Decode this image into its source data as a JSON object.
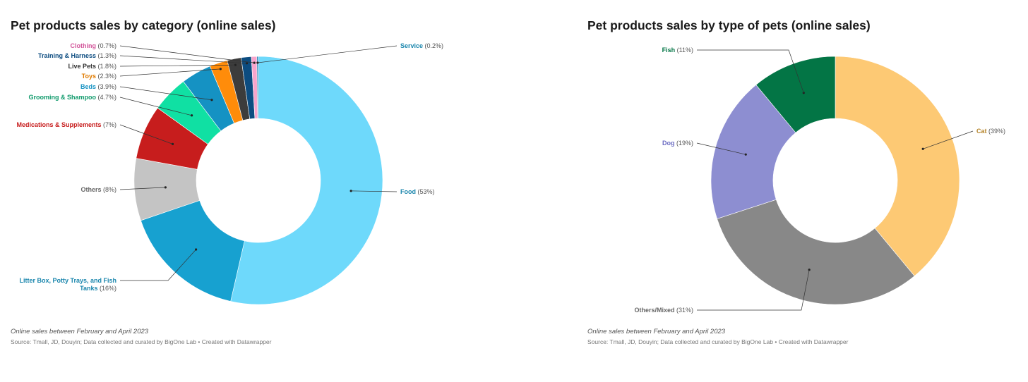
{
  "chart_data": [
    {
      "type": "pie",
      "title": "Pet products sales by category (online sales)",
      "caption": "Online sales between February and April 2023",
      "source": "Source: Tmall, JD, Douyin; Data collected and curated by BigOne Lab • Created with Datawrapper",
      "slices": [
        {
          "label": "Food",
          "pct": "(53%)",
          "value": 53,
          "color": "#6ed9fb",
          "text_color": "#1a86ad"
        },
        {
          "label": "Litter Box, Potty Trays, and Fish Tanks",
          "label_lines": [
            "Litter Box, Potty Trays, and Fish",
            "Tanks"
          ],
          "pct": "(16%)",
          "value": 16,
          "color": "#17a1d0",
          "text_color": "#1a86ad"
        },
        {
          "label": "Others",
          "pct": "(8%)",
          "value": 8,
          "color": "#c4c4c4",
          "text_color": "#666666"
        },
        {
          "label": "Medications & Supplements",
          "pct": "(7%)",
          "value": 7,
          "color": "#c71d1d",
          "text_color": "#c71d1d"
        },
        {
          "label": "Grooming & Shampoo",
          "pct": "(4.7%)",
          "value": 4.7,
          "color": "#10e0a3",
          "text_color": "#0f9a6b"
        },
        {
          "label": "Beds",
          "pct": "(3.9%)",
          "value": 3.9,
          "color": "#1592c3",
          "text_color": "#1592c3"
        },
        {
          "label": "Toys",
          "pct": "(2.3%)",
          "value": 2.3,
          "color": "#ff8c0a",
          "text_color": "#e07b00"
        },
        {
          "label": "Live Pets",
          "pct": "(1.8%)",
          "value": 1.8,
          "color": "#3c3c3c",
          "text_color": "#333333"
        },
        {
          "label": "Training & Harness",
          "pct": "(1.3%)",
          "value": 1.3,
          "color": "#0c4c80",
          "text_color": "#0c4c80"
        },
        {
          "label": "Clothing",
          "pct": "(0.7%)",
          "value": 0.7,
          "color": "#f7a5cc",
          "text_color": "#d2559a"
        },
        {
          "label": "Service",
          "pct": "(0.2%)",
          "value": 0.2,
          "color": "#2e8ab8",
          "text_color": "#1a86ad"
        }
      ]
    },
    {
      "type": "pie",
      "title": "Pet products sales by type of pets (online sales)",
      "caption": "Online sales between February and April 2023",
      "source": "Source: Tmall, JD, Douyin; Data collected and curated by BigOne Lab • Created with Datawrapper",
      "slices": [
        {
          "label": "Cat",
          "pct": "(39%)",
          "value": 39,
          "color": "#fdc974",
          "text_color": "#b5842a"
        },
        {
          "label": "Others/Mixed",
          "pct": "(31%)",
          "value": 31,
          "color": "#888888",
          "text_color": "#666666"
        },
        {
          "label": "Dog",
          "pct": "(19%)",
          "value": 19,
          "color": "#8d8ed1",
          "text_color": "#6a6bc2"
        },
        {
          "label": "Fish",
          "pct": "(11%)",
          "value": 11,
          "color": "#037545",
          "text_color": "#037545"
        }
      ]
    }
  ]
}
